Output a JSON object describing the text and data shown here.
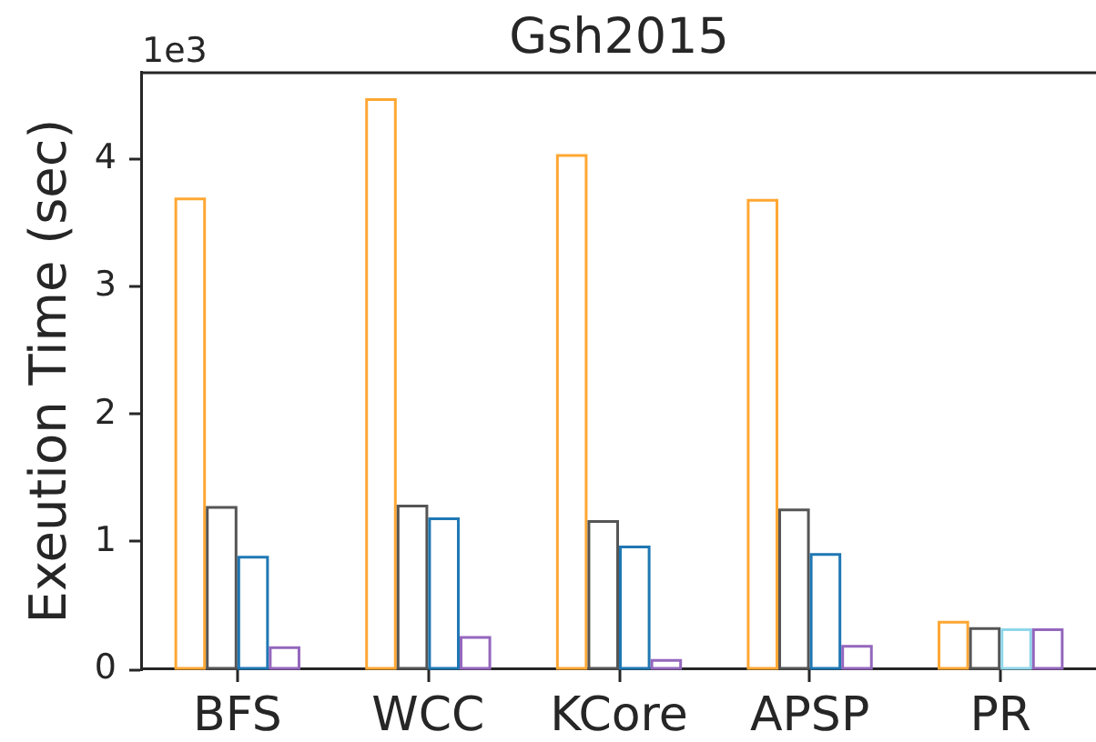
{
  "chart_data": {
    "type": "bar",
    "title": "Gsh2015",
    "ylabel": "Exeution Time (sec)",
    "annotations": [
      "1e3"
    ],
    "categories": [
      "BFS",
      "WCC",
      "KCore",
      "APSP",
      "PR"
    ],
    "series": [
      {
        "color": "#ffa733",
        "values": [
          3.69,
          4.47,
          4.03,
          3.68,
          0.37
        ]
      },
      {
        "color": "#555555",
        "values": [
          1.27,
          1.28,
          1.16,
          1.25,
          0.32
        ]
      },
      {
        "color": "#1f77b4",
        "values": [
          0.88,
          1.18,
          0.96,
          0.9,
          null
        ]
      },
      {
        "color": "#8fd6ea",
        "values": [
          null,
          null,
          null,
          null,
          0.31
        ]
      },
      {
        "color": "#9467bd",
        "values": [
          0.17,
          0.25,
          0.07,
          0.18,
          0.31
        ]
      }
    ],
    "ylim": [
      0,
      4.68
    ],
    "yticks": [
      0,
      1,
      2,
      3,
      4
    ]
  }
}
